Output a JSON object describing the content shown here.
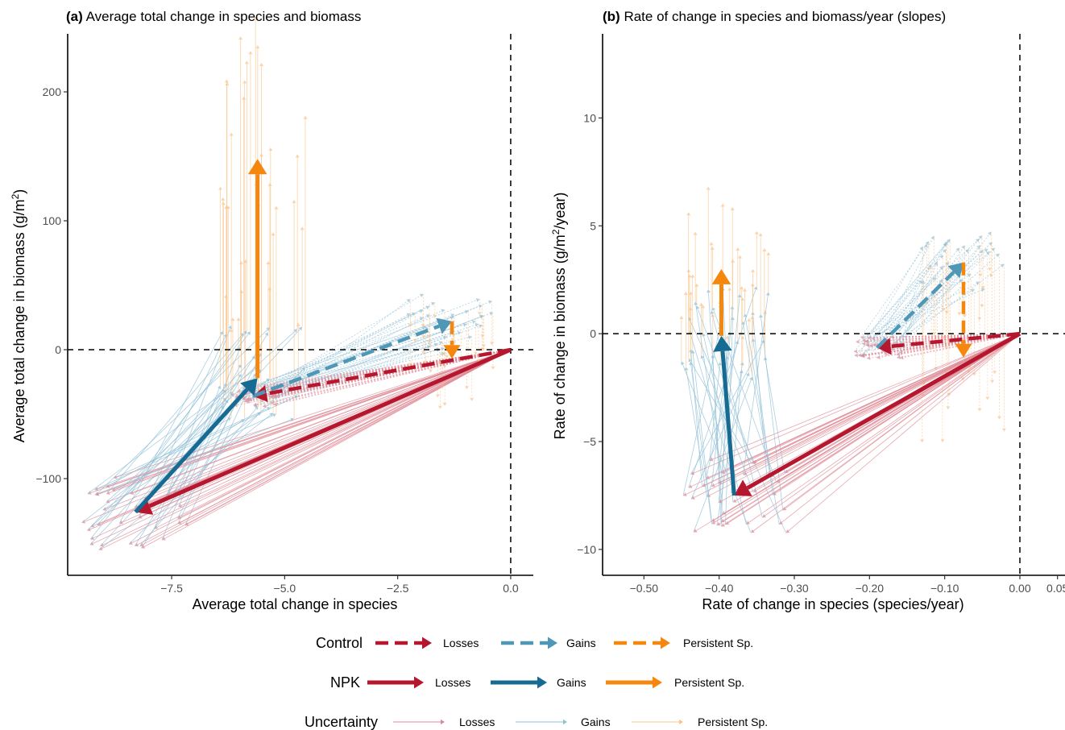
{
  "colors": {
    "losses": "#b5172e",
    "gains": "#176b93",
    "gains_control": "#4f97b6",
    "persistent": "#f5870f",
    "loss_unc": "#df8a96",
    "gain_unc": "#8fbfd6",
    "pers_unc": "#f8c58d"
  },
  "chart_data": [
    {
      "type": "line",
      "panel": "(a)",
      "title": "Average total change in species and biomass",
      "xlabel": "Average total change in species",
      "ylabel": "Average total change in biomass (g/m",
      "ylabel_sup": "2",
      "ylabel_end": ")",
      "xlim": [
        -9.8,
        0.5
      ],
      "ylim": [
        -175,
        245
      ],
      "xticks": [
        -7.5,
        -5.0,
        -2.5,
        0.0
      ],
      "xtick_labels": [
        "−7.5",
        "−5.0",
        "−2.5",
        "0.0"
      ],
      "yticks": [
        -100,
        0,
        100,
        200
      ],
      "ytick_labels": [
        "−100",
        "0",
        "100",
        "200"
      ],
      "series": [
        {
          "name": "Control Losses",
          "treatment": "Control",
          "component": "Losses",
          "from": [
            0,
            0
          ],
          "to": [
            -5.7,
            -36
          ]
        },
        {
          "name": "Control Gains",
          "treatment": "Control",
          "component": "Gains",
          "from": [
            -5.7,
            -36
          ],
          "to": [
            -1.3,
            22
          ]
        },
        {
          "name": "Control Persistent Sp.",
          "treatment": "Control",
          "component": "Persistent Sp.",
          "from": [
            -1.3,
            22
          ],
          "to": [
            -1.3,
            -7
          ]
        },
        {
          "name": "NPK Losses",
          "treatment": "NPK",
          "component": "Losses",
          "from": [
            0,
            0
          ],
          "to": [
            -8.3,
            -126
          ]
        },
        {
          "name": "NPK Gains",
          "treatment": "NPK",
          "component": "Gains",
          "from": [
            -8.3,
            -126
          ],
          "to": [
            -5.6,
            -22
          ]
        },
        {
          "name": "NPK Persistent Sp.",
          "treatment": "NPK",
          "component": "Persistent Sp.",
          "from": [
            -5.6,
            -22
          ],
          "to": [
            -5.6,
            148
          ]
        }
      ]
    },
    {
      "type": "line",
      "panel": "(b)",
      "title": "Rate of change in species and biomass/year (slopes)",
      "xlabel": "Rate of change in species (species/year)",
      "ylabel": "Rate of change in biomass (g/m",
      "ylabel_sup": "2",
      "ylabel_end": "/year)",
      "xlim": [
        -0.555,
        0.06
      ],
      "ylim": [
        -11.2,
        13.9
      ],
      "xticks": [
        -0.5,
        -0.4,
        -0.3,
        -0.2,
        -0.1,
        0.0,
        0.05
      ],
      "xtick_labels": [
        "−0.50",
        "−0.40",
        "−0.30",
        "−0.20",
        "−0.10",
        "0.00",
        "0.05"
      ],
      "yticks": [
        -10,
        -5,
        0,
        5,
        10
      ],
      "ytick_labels": [
        "−10",
        "−5",
        "0",
        "5",
        "10"
      ],
      "series": [
        {
          "name": "Control Losses",
          "treatment": "Control",
          "component": "Losses",
          "from": [
            0,
            0
          ],
          "to": [
            -0.19,
            -0.65
          ]
        },
        {
          "name": "Control Gains",
          "treatment": "Control",
          "component": "Gains",
          "from": [
            -0.19,
            -0.65
          ],
          "to": [
            -0.075,
            3.3
          ]
        },
        {
          "name": "Control Persistent Sp.",
          "treatment": "Control",
          "component": "Persistent Sp.",
          "from": [
            -0.075,
            3.3
          ],
          "to": [
            -0.075,
            -1.1
          ]
        },
        {
          "name": "NPK Losses",
          "treatment": "NPK",
          "component": "Losses",
          "from": [
            0,
            0
          ],
          "to": [
            -0.38,
            -7.5
          ]
        },
        {
          "name": "NPK Gains",
          "treatment": "NPK",
          "component": "Gains",
          "from": [
            -0.38,
            -7.5
          ],
          "to": [
            -0.397,
            -0.1
          ]
        },
        {
          "name": "NPK Persistent Sp.",
          "treatment": "NPK",
          "component": "Persistent Sp.",
          "from": [
            -0.397,
            -0.1
          ],
          "to": [
            -0.397,
            3.0
          ]
        }
      ]
    }
  ],
  "legend": {
    "placement": "bottom",
    "rows": [
      {
        "title": "Control",
        "style": "dashed",
        "items": [
          "Losses",
          "Gains",
          "Persistent Sp."
        ]
      },
      {
        "title": "NPK",
        "style": "solid",
        "items": [
          "Losses",
          "Gains",
          "Persistent Sp."
        ]
      },
      {
        "title": "Uncertainty",
        "style": "thin",
        "items": [
          "Losses",
          "Gains",
          "Persistent Sp."
        ]
      }
    ]
  }
}
